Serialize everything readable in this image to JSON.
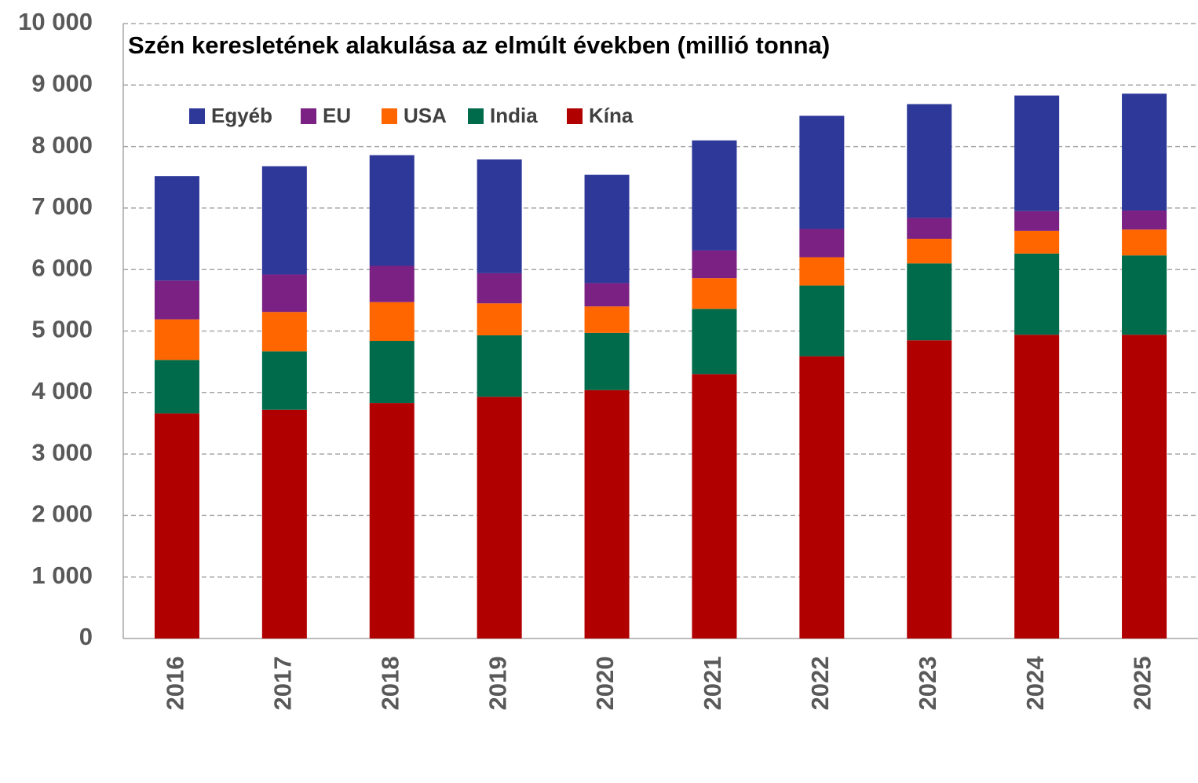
{
  "chart_data": {
    "type": "stacked_bar",
    "title": "Szén keresletének alakulása az elmúlt években (millió tonna)",
    "categories": [
      "2016",
      "2017",
      "2018",
      "2019",
      "2020",
      "2021",
      "2022",
      "2023",
      "2024",
      "2025"
    ],
    "series": [
      {
        "name": "Kína",
        "color": "#b00000",
        "values": [
          3660,
          3720,
          3830,
          3930,
          4040,
          4300,
          4590,
          4850,
          4940,
          4940
        ]
      },
      {
        "name": "India",
        "color": "#006b4a",
        "values": [
          870,
          950,
          1010,
          1000,
          930,
          1060,
          1150,
          1250,
          1320,
          1290
        ]
      },
      {
        "name": "USA",
        "color": "#ff6600",
        "values": [
          660,
          640,
          630,
          520,
          430,
          500,
          460,
          400,
          370,
          420
        ]
      },
      {
        "name": "EU",
        "color": "#7b2183",
        "values": [
          630,
          610,
          590,
          490,
          380,
          450,
          460,
          340,
          320,
          310
        ]
      },
      {
        "name": "Egyéb",
        "color": "#2e3899",
        "values": [
          1700,
          1760,
          1800,
          1850,
          1760,
          1790,
          1840,
          1850,
          1880,
          1900
        ]
      }
    ],
    "ylim": [
      0,
      10000
    ],
    "yticks": [
      0,
      {
        "value": 1000,
        "label": "1 000"
      },
      {
        "value": 2000,
        "label": "2 000"
      },
      {
        "value": 3000,
        "label": "3 000"
      },
      {
        "value": 4000,
        "label": "4 000"
      },
      {
        "value": 5000,
        "label": "5 000"
      },
      {
        "value": 6000,
        "label": "6 000"
      },
      {
        "value": 7000,
        "label": "7 000"
      },
      {
        "value": 8000,
        "label": "8 000"
      },
      {
        "value": 9000,
        "label": "9 000"
      },
      {
        "value": 10000,
        "label": "10 000"
      }
    ],
    "grid": true
  }
}
